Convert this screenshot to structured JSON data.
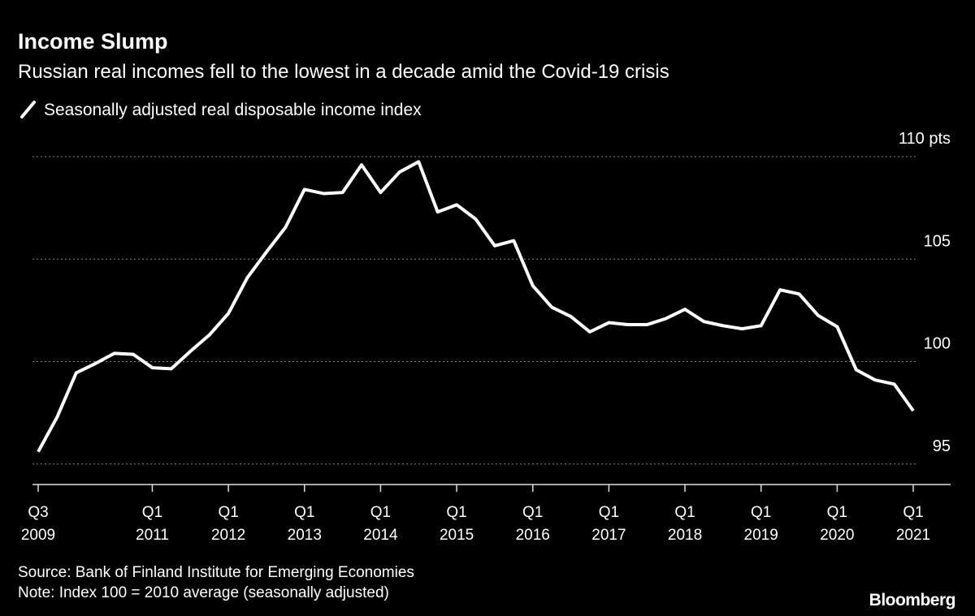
{
  "chart_data": {
    "type": "line",
    "title": "Income Slump",
    "subtitle": "Russian real incomes fell to the lowest in a decade amid the Covid-19 crisis",
    "source": "Source: Bank of Finland Institute for Emerging Economies",
    "note": "Note: Index 100 = 2010 average (seasonally adjusted)",
    "brand": "Bloomberg",
    "categories": [
      [
        "Q3",
        "2009"
      ],
      null,
      null,
      null,
      null,
      null,
      [
        "Q1",
        "2011"
      ],
      null,
      null,
      null,
      [
        "Q1",
        "2012"
      ],
      null,
      null,
      null,
      [
        "Q1",
        "2013"
      ],
      null,
      null,
      null,
      [
        "Q1",
        "2014"
      ],
      null,
      null,
      null,
      [
        "Q1",
        "2015"
      ],
      null,
      null,
      null,
      [
        "Q1",
        "2016"
      ],
      null,
      null,
      null,
      [
        "Q1",
        "2017"
      ],
      null,
      null,
      null,
      [
        "Q1",
        "2018"
      ],
      null,
      null,
      null,
      [
        "Q1",
        "2019"
      ],
      null,
      null,
      null,
      [
        "Q1",
        "2020"
      ],
      null,
      null,
      null,
      [
        "Q1",
        "2021"
      ]
    ],
    "series": [
      {
        "name": "Seasonally adjusted real disposable income index",
        "color": "#ffffff",
        "values": [
          95.6,
          97.3,
          99.45,
          99.9,
          100.4,
          100.35,
          99.7,
          99.65,
          100.5,
          101.3,
          102.35,
          104.1,
          105.35,
          106.55,
          108.4,
          108.2,
          108.25,
          109.6,
          108.25,
          109.25,
          109.75,
          107.3,
          107.65,
          106.95,
          105.65,
          105.9,
          103.7,
          102.65,
          102.2,
          101.45,
          101.9,
          101.8,
          101.8,
          102.1,
          102.55,
          101.95,
          101.75,
          101.6,
          101.75,
          103.5,
          103.3,
          102.25,
          101.7,
          99.6,
          99.1,
          98.9,
          97.6
        ]
      }
    ],
    "ylim": [
      94,
      110
    ],
    "yticks": [
      95,
      100,
      105,
      {
        "value": 110,
        "label": "110 pts"
      }
    ],
    "grid": true
  }
}
